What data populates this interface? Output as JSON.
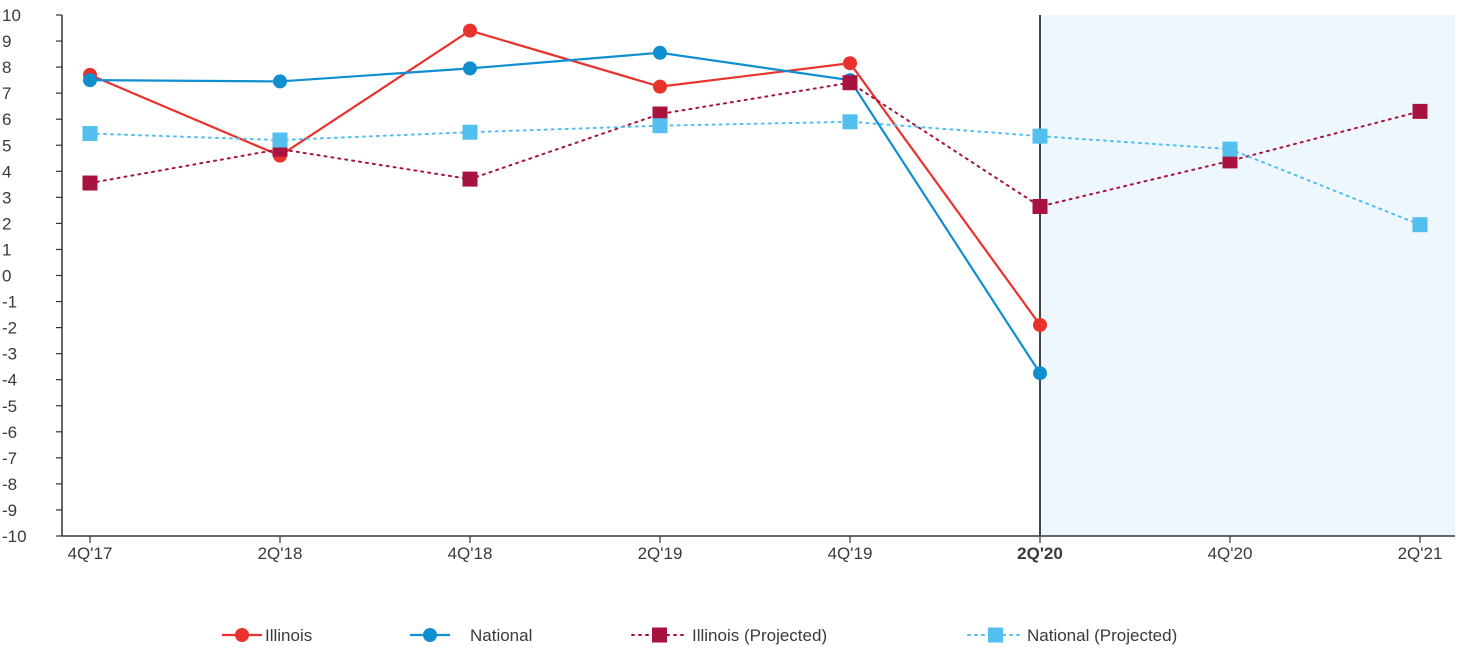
{
  "chart_data": {
    "type": "line",
    "categories": [
      "4Q'17",
      "2Q'18",
      "4Q'18",
      "2Q'19",
      "4Q'19",
      "2Q'20",
      "4Q'20",
      "2Q'21"
    ],
    "highlight_category": "2Q'20",
    "y_ticks": [
      "10",
      "9",
      "8",
      "7",
      "6",
      "5",
      "4",
      "3",
      "2",
      "1",
      "0",
      "-1",
      "-2",
      "-3",
      "-4",
      "-5",
      "-6",
      "-7",
      "-8",
      "-9",
      "-10"
    ],
    "ylim": [
      -10,
      10
    ],
    "grid": false,
    "legend_position": "bottom-center",
    "projection_shading": {
      "from_category": "2Q'20",
      "to_category": "2Q'21",
      "color": "#eef7fd"
    },
    "series": [
      {
        "name": "Illinois",
        "color": "#e8322b",
        "marker": "circle",
        "dash": "solid",
        "values": [
          7.7,
          4.6,
          9.4,
          7.25,
          8.15,
          -1.9,
          null,
          null
        ]
      },
      {
        "name": "National",
        "color": "#0f8fd0",
        "marker": "circle",
        "dash": "solid",
        "values": [
          7.5,
          7.45,
          7.95,
          8.55,
          7.5,
          -3.75,
          null,
          null
        ]
      },
      {
        "name": "Illinois (Projected)",
        "color": "#a8123e",
        "marker": "square",
        "dash": "dotted",
        "values": [
          3.55,
          4.85,
          3.7,
          6.2,
          7.4,
          2.65,
          4.4,
          6.3
        ]
      },
      {
        "name": "National (Projected)",
        "color": "#52bfee",
        "marker": "square",
        "dash": "dotted",
        "values": [
          5.45,
          5.2,
          5.5,
          5.75,
          5.9,
          5.35,
          4.85,
          1.95
        ]
      }
    ]
  }
}
